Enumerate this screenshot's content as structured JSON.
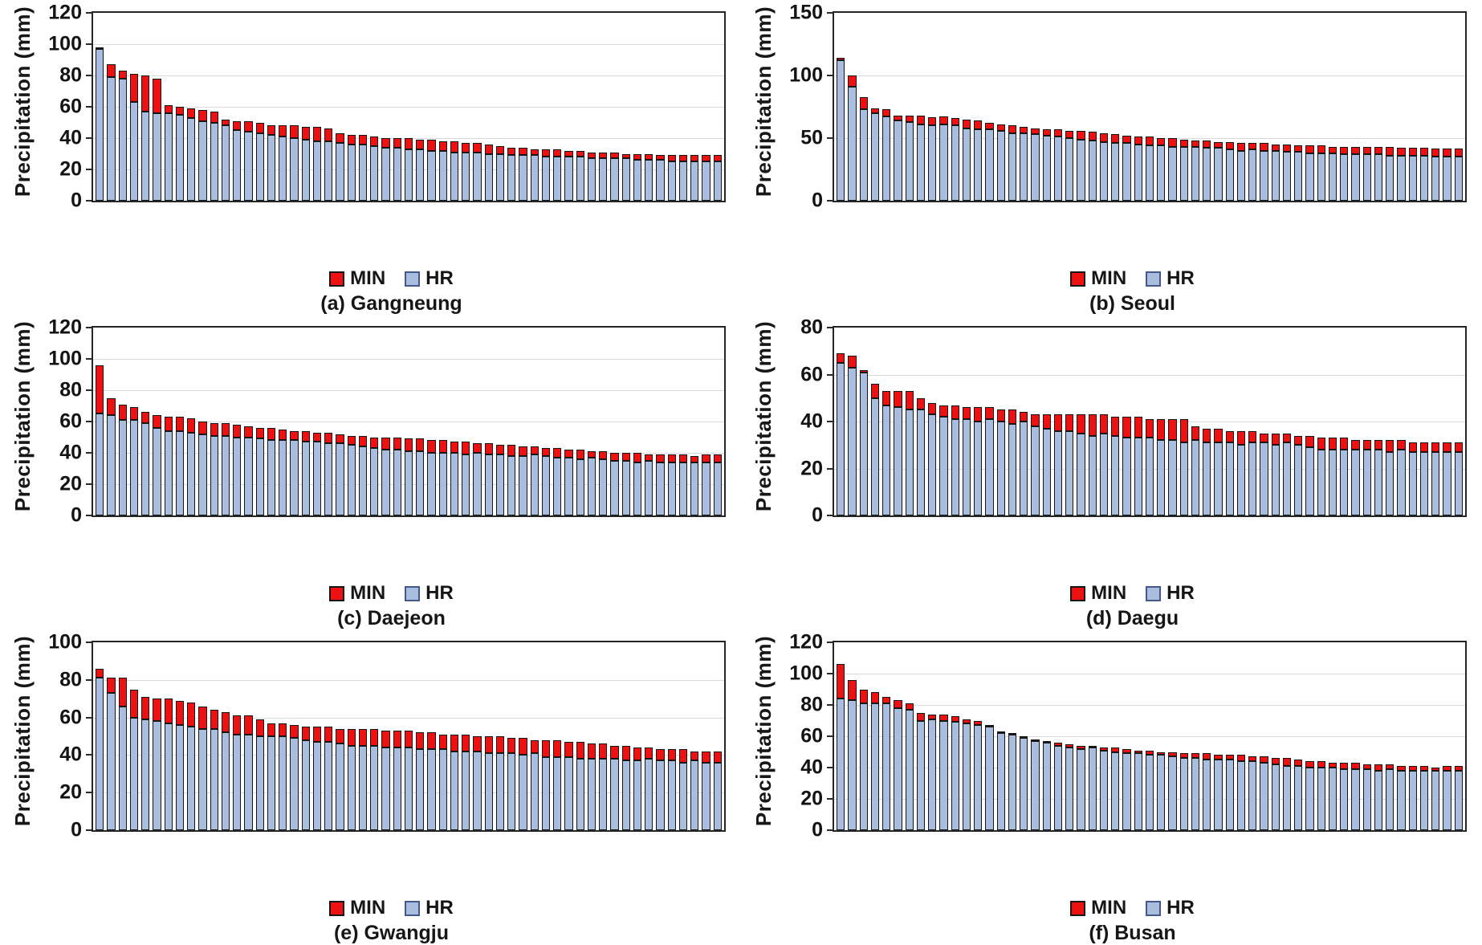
{
  "figure": {
    "background": "#ffffff"
  },
  "colors": {
    "min": "#ee1111",
    "hr": "#a9bede",
    "bar_border": "#161616",
    "hr_legend_border": "#44598a",
    "min_legend_border": "#161616",
    "grid": "#d9d9d9",
    "plot_border": "#262626"
  },
  "legend": {
    "min_label": "MIN",
    "hr_label": "HR"
  },
  "chart_data": [
    {
      "type": "bar",
      "stacked": true,
      "title": "(a) Gangneung",
      "ylabel": "Precipitation (mm)",
      "xlabel": "",
      "ylim": [
        0,
        120
      ],
      "yticks": [
        0,
        20,
        40,
        60,
        80,
        100,
        120
      ],
      "grid": true,
      "legend_position": "bottom",
      "series": [
        {
          "name": "HR",
          "color_key": "hr",
          "values": [
            97,
            79,
            78,
            63,
            57,
            56,
            56,
            55,
            53,
            51,
            50,
            48,
            45,
            44,
            43,
            42,
            41,
            40,
            39,
            38,
            38,
            37,
            36,
            36,
            35,
            34,
            34,
            33,
            33,
            32,
            32,
            31,
            31,
            31,
            30,
            30,
            29,
            29,
            29,
            28,
            28,
            28,
            28,
            27,
            27,
            27,
            27,
            26,
            26,
            26,
            25,
            25,
            25,
            25,
            25
          ]
        },
        {
          "name": "MIN",
          "color_key": "min",
          "values": [
            1,
            8,
            5,
            18,
            23,
            22,
            5,
            5,
            6,
            7,
            7,
            4,
            6,
            7,
            7,
            6,
            7,
            8,
            8,
            9,
            8,
            6,
            6,
            6,
            6,
            6,
            6,
            7,
            6,
            7,
            6,
            7,
            6,
            6,
            6,
            5,
            5,
            5,
            4,
            5,
            5,
            4,
            4,
            4,
            4,
            4,
            3,
            4,
            4,
            3,
            4,
            4,
            4,
            4,
            4
          ]
        }
      ]
    },
    {
      "type": "bar",
      "stacked": true,
      "title": "(b) Seoul",
      "ylabel": "Precipitation (mm)",
      "xlabel": "",
      "ylim": [
        0,
        150
      ],
      "yticks": [
        0,
        50,
        100,
        150
      ],
      "grid": true,
      "legend_position": "bottom",
      "series": [
        {
          "name": "HR",
          "color_key": "hr",
          "values": [
            112,
            91,
            73,
            70,
            67,
            64,
            63,
            61,
            60,
            61,
            60,
            58,
            57,
            57,
            56,
            54,
            54,
            53,
            52,
            51,
            50,
            49,
            48,
            47,
            46,
            46,
            45,
            44,
            44,
            43,
            43,
            43,
            42,
            42,
            41,
            40,
            41,
            40,
            40,
            39,
            39,
            38,
            38,
            38,
            37,
            37,
            37,
            37,
            36,
            36,
            36,
            36,
            35,
            35,
            35
          ]
        },
        {
          "name": "MIN",
          "color_key": "min",
          "values": [
            2,
            9,
            10,
            4,
            6,
            4,
            5,
            7,
            7,
            6,
            6,
            7,
            7,
            5,
            5,
            6,
            5,
            5,
            5,
            6,
            6,
            7,
            7,
            7,
            7,
            6,
            6,
            7,
            6,
            7,
            6,
            5,
            6,
            5,
            6,
            6,
            5,
            6,
            5,
            6,
            5,
            6,
            6,
            5,
            6,
            6,
            6,
            6,
            7,
            6,
            6,
            6,
            7,
            7,
            7
          ]
        }
      ]
    },
    {
      "type": "bar",
      "stacked": true,
      "title": "(c) Daejeon",
      "ylabel": "Precipitation (mm)",
      "xlabel": "",
      "ylim": [
        0,
        120
      ],
      "yticks": [
        0,
        20,
        40,
        60,
        80,
        100,
        120
      ],
      "grid": true,
      "legend_position": "bottom",
      "series": [
        {
          "name": "HR",
          "color_key": "hr",
          "values": [
            65,
            64,
            61,
            61,
            59,
            56,
            54,
            54,
            53,
            52,
            51,
            51,
            50,
            50,
            49,
            48,
            48,
            48,
            47,
            47,
            46,
            46,
            45,
            44,
            43,
            42,
            42,
            41,
            41,
            40,
            40,
            40,
            39,
            40,
            39,
            39,
            38,
            38,
            39,
            38,
            37,
            37,
            36,
            37,
            36,
            35,
            35,
            34,
            35,
            34,
            34,
            34,
            34,
            34,
            34
          ]
        },
        {
          "name": "MIN",
          "color_key": "min",
          "values": [
            31,
            11,
            10,
            8,
            7,
            8,
            9,
            9,
            9,
            8,
            8,
            8,
            8,
            7,
            7,
            8,
            7,
            6,
            7,
            6,
            7,
            6,
            6,
            7,
            7,
            8,
            8,
            8,
            8,
            8,
            8,
            7,
            8,
            6,
            7,
            6,
            7,
            6,
            5,
            5,
            6,
            5,
            6,
            4,
            5,
            5,
            5,
            6,
            4,
            5,
            5,
            5,
            4,
            5,
            5
          ]
        }
      ]
    },
    {
      "type": "bar",
      "stacked": true,
      "title": "(d) Daegu",
      "ylabel": "Precipitation (mm)",
      "xlabel": "",
      "ylim": [
        0,
        80
      ],
      "yticks": [
        0,
        20,
        40,
        60,
        80
      ],
      "grid": true,
      "legend_position": "bottom",
      "series": [
        {
          "name": "HR",
          "color_key": "hr",
          "values": [
            65,
            63,
            61,
            50,
            47,
            46,
            45,
            45,
            43,
            42,
            41,
            41,
            40,
            41,
            40,
            39,
            40,
            38,
            37,
            36,
            36,
            35,
            34,
            35,
            34,
            33,
            33,
            33,
            32,
            32,
            31,
            32,
            31,
            31,
            31,
            30,
            31,
            31,
            30,
            31,
            30,
            29,
            28,
            28,
            28,
            28,
            28,
            28,
            27,
            28,
            27,
            27,
            27,
            27,
            27
          ]
        },
        {
          "name": "MIN",
          "color_key": "min",
          "values": [
            4,
            5,
            1,
            6,
            6,
            7,
            8,
            5,
            5,
            5,
            6,
            5,
            6,
            5,
            5,
            6,
            4,
            5,
            6,
            7,
            7,
            8,
            9,
            8,
            8,
            9,
            9,
            8,
            9,
            9,
            10,
            6,
            6,
            6,
            5,
            6,
            5,
            4,
            5,
            4,
            4,
            5,
            5,
            5,
            5,
            4,
            4,
            4,
            5,
            4,
            4,
            4,
            4,
            4,
            4
          ]
        }
      ]
    },
    {
      "type": "bar",
      "stacked": true,
      "title": "(e) Gwangju",
      "ylabel": "Precipitation (mm)",
      "xlabel": "",
      "ylim": [
        0,
        100
      ],
      "yticks": [
        0,
        20,
        40,
        60,
        80,
        100
      ],
      "grid": true,
      "legend_position": "bottom",
      "series": [
        {
          "name": "HR",
          "color_key": "hr",
          "values": [
            81,
            73,
            66,
            60,
            59,
            58,
            57,
            56,
            55,
            54,
            54,
            52,
            51,
            51,
            50,
            50,
            50,
            49,
            48,
            47,
            47,
            46,
            45,
            45,
            45,
            44,
            44,
            44,
            43,
            43,
            43,
            42,
            42,
            42,
            41,
            41,
            41,
            40,
            41,
            39,
            39,
            39,
            38,
            38,
            38,
            38,
            37,
            37,
            38,
            37,
            37,
            36,
            37,
            36,
            36
          ]
        },
        {
          "name": "MIN",
          "color_key": "min",
          "values": [
            5,
            8,
            15,
            15,
            12,
            12,
            13,
            13,
            13,
            12,
            10,
            11,
            10,
            10,
            9,
            7,
            7,
            7,
            7,
            8,
            8,
            8,
            9,
            9,
            9,
            9,
            9,
            9,
            9,
            9,
            8,
            9,
            9,
            8,
            9,
            9,
            8,
            9,
            7,
            9,
            9,
            8,
            9,
            8,
            8,
            7,
            8,
            7,
            6,
            6,
            6,
            7,
            5,
            6,
            6
          ]
        }
      ]
    },
    {
      "type": "bar",
      "stacked": true,
      "title": "(f) Busan",
      "ylabel": "Precipitation (mm)",
      "xlabel": "",
      "ylim": [
        0,
        120
      ],
      "yticks": [
        0,
        20,
        40,
        60,
        80,
        100,
        120
      ],
      "grid": true,
      "legend_position": "bottom",
      "series": [
        {
          "name": "HR",
          "color_key": "hr",
          "values": [
            84,
            83,
            81,
            81,
            81,
            78,
            77,
            70,
            71,
            70,
            69,
            68,
            67,
            66,
            62,
            61,
            59,
            57,
            56,
            54,
            53,
            52,
            53,
            51,
            50,
            49,
            49,
            48,
            48,
            47,
            46,
            46,
            45,
            45,
            45,
            44,
            44,
            43,
            42,
            41,
            41,
            40,
            40,
            40,
            39,
            39,
            39,
            38,
            39,
            38,
            38,
            38,
            38,
            38,
            38
          ]
        },
        {
          "name": "MIN",
          "color_key": "min",
          "values": [
            22,
            13,
            9,
            7,
            4,
            5,
            4,
            5,
            3,
            4,
            4,
            3,
            3,
            1,
            1,
            1,
            1,
            1,
            1,
            2,
            2,
            2,
            1,
            2,
            3,
            3,
            2,
            3,
            2,
            3,
            3,
            3,
            4,
            3,
            3,
            4,
            3,
            4,
            4,
            5,
            4,
            4,
            4,
            3,
            4,
            4,
            3,
            4,
            3,
            3,
            3,
            3,
            2,
            3,
            3
          ]
        }
      ]
    }
  ]
}
